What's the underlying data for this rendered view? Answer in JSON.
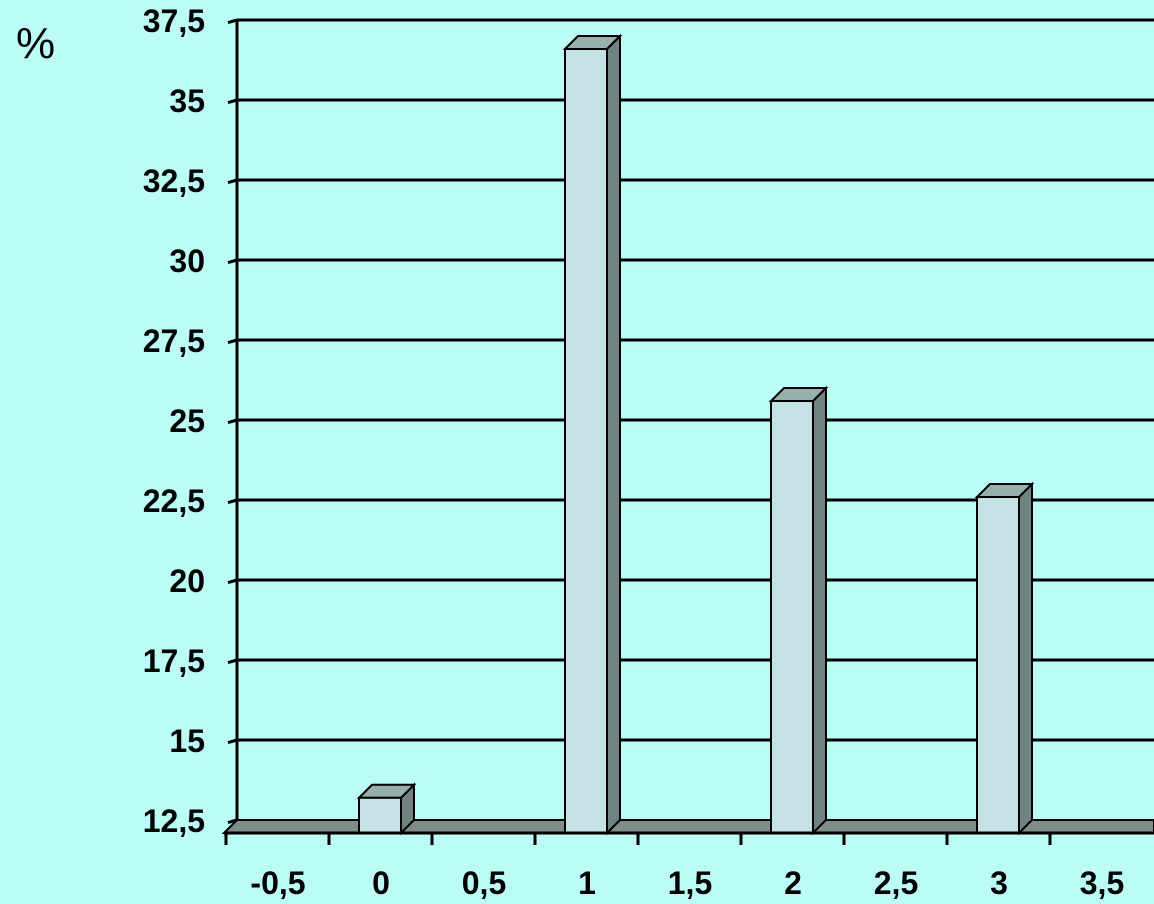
{
  "chart_data": {
    "type": "bar",
    "title": "",
    "xlabel": "",
    "ylabel": "%",
    "x_ticks": [
      "-0,5",
      "0",
      "0,5",
      "1",
      "1,5",
      "2",
      "2,5",
      "3",
      "3,5"
    ],
    "y_ticks": [
      "12,5",
      "15",
      "17,5",
      "20",
      "22,5",
      "25",
      "27,5",
      "30",
      "32,5",
      "35",
      "37,5"
    ],
    "ylim": [
      12.5,
      37.5
    ],
    "xlim": [
      -0.5,
      3.5
    ],
    "grid": true,
    "categories": [
      0,
      1,
      2,
      3
    ],
    "values": [
      13.6,
      37.0,
      26.0,
      23.0
    ],
    "colors": {
      "background": "#bbfdf6",
      "bar_front": "#c4e2e5",
      "bar_side": "#6f8480",
      "bar_top": "#97afad",
      "floor": "#7e8d8a",
      "grid": "#000000"
    }
  }
}
